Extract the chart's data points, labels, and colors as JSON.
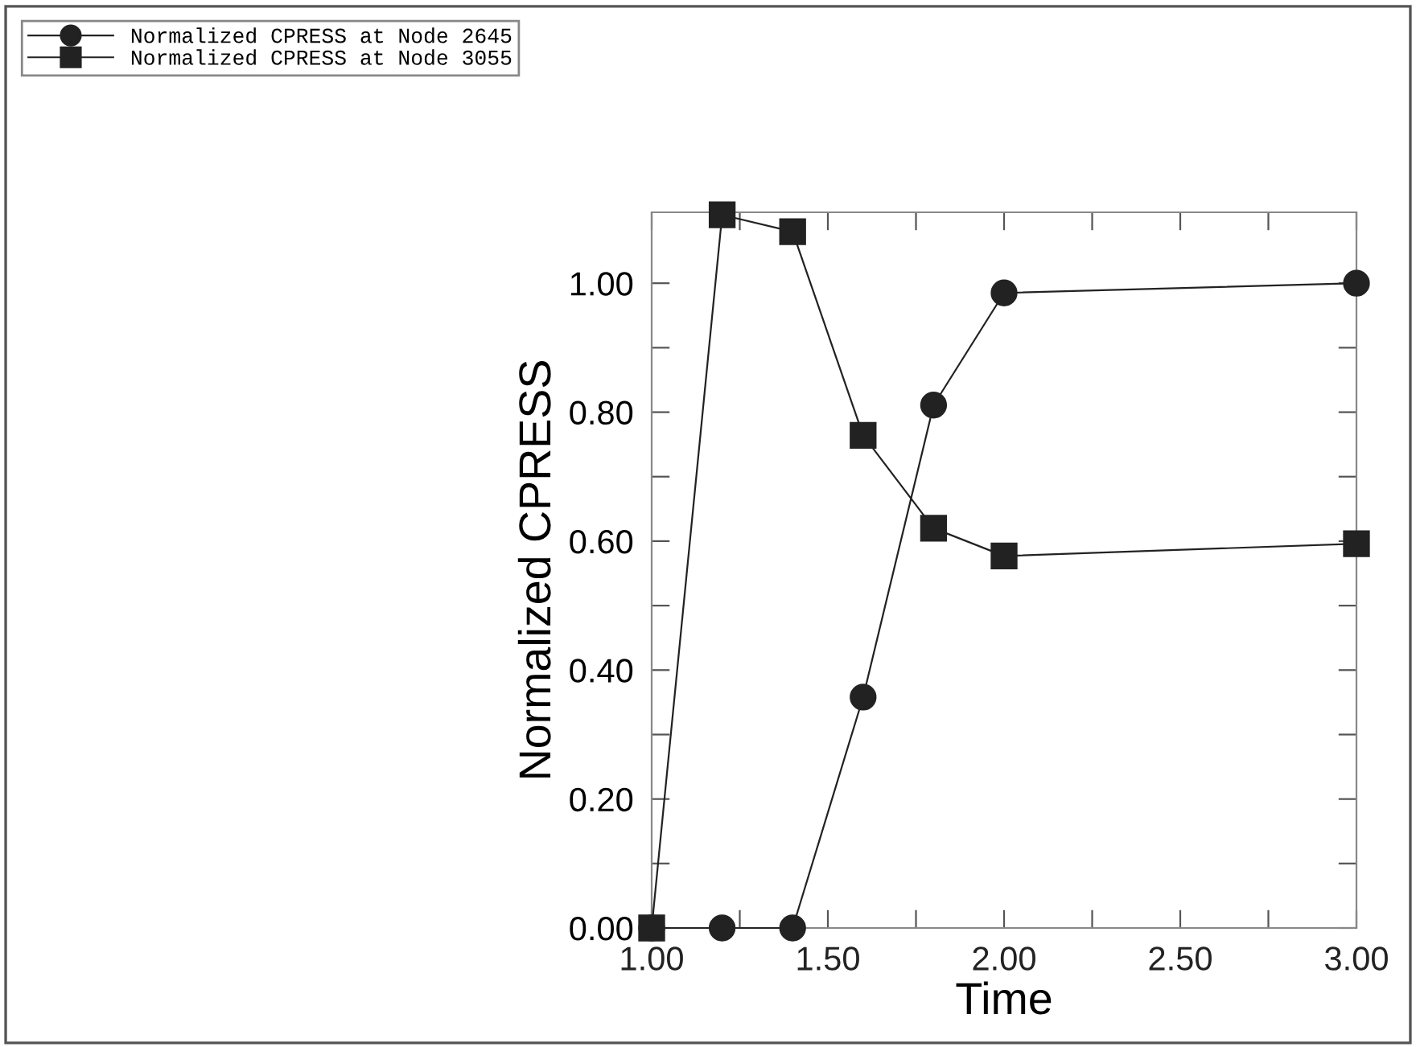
{
  "chart_data": {
    "type": "line",
    "xlabel": "Time",
    "ylabel": "Normalized CPRESS",
    "legend": "top left",
    "line_style": "solid",
    "grid": false,
    "xlim": [
      1.0,
      3.0
    ],
    "ylim": [
      0,
      1.11
    ],
    "xticks": [
      {
        "value": 1.0,
        "label": "1.00"
      },
      {
        "value": 1.25,
        "label": null
      },
      {
        "value": 1.5,
        "label": "1.50"
      },
      {
        "value": 1.75,
        "label": null
      },
      {
        "value": 2.0,
        "label": "2.00"
      },
      {
        "value": 2.25,
        "label": null
      },
      {
        "value": 2.5,
        "label": "2.50"
      },
      {
        "value": 2.75,
        "label": null
      },
      {
        "value": 3.0,
        "label": "3.00"
      }
    ],
    "yticks": [
      {
        "value": 0,
        "label": "0.00"
      },
      {
        "value": 0.1,
        "label": null
      },
      {
        "value": 0.2,
        "label": "0.20"
      },
      {
        "value": 0.3,
        "label": null
      },
      {
        "value": 0.4,
        "label": "0.40"
      },
      {
        "value": 0.5,
        "label": null
      },
      {
        "value": 0.6,
        "label": "0.60"
      },
      {
        "value": 0.7,
        "label": null
      },
      {
        "value": 0.8,
        "label": "0.80"
      },
      {
        "value": 0.9,
        "label": null
      },
      {
        "value": 1.0,
        "label": "1.00"
      }
    ],
    "series": [
      {
        "name": "Normalized CPRESS at Node 2645",
        "color": "#222222",
        "marker": "circle",
        "x": [
          1.0,
          1.2,
          1.4,
          1.6,
          1.8,
          2.0,
          3.0
        ],
        "values": [
          0,
          0,
          0,
          0.358,
          0.811,
          0.985,
          1.0
        ]
      },
      {
        "name": "Normalized CPRESS at Node 3055",
        "color": "#222222",
        "marker": "square",
        "x": [
          1.0,
          1.2,
          1.4,
          1.6,
          1.8,
          2.0,
          3.0
        ],
        "values": [
          0,
          1.106,
          1.08,
          0.764,
          0.62,
          0.577,
          0.596
        ]
      }
    ]
  }
}
